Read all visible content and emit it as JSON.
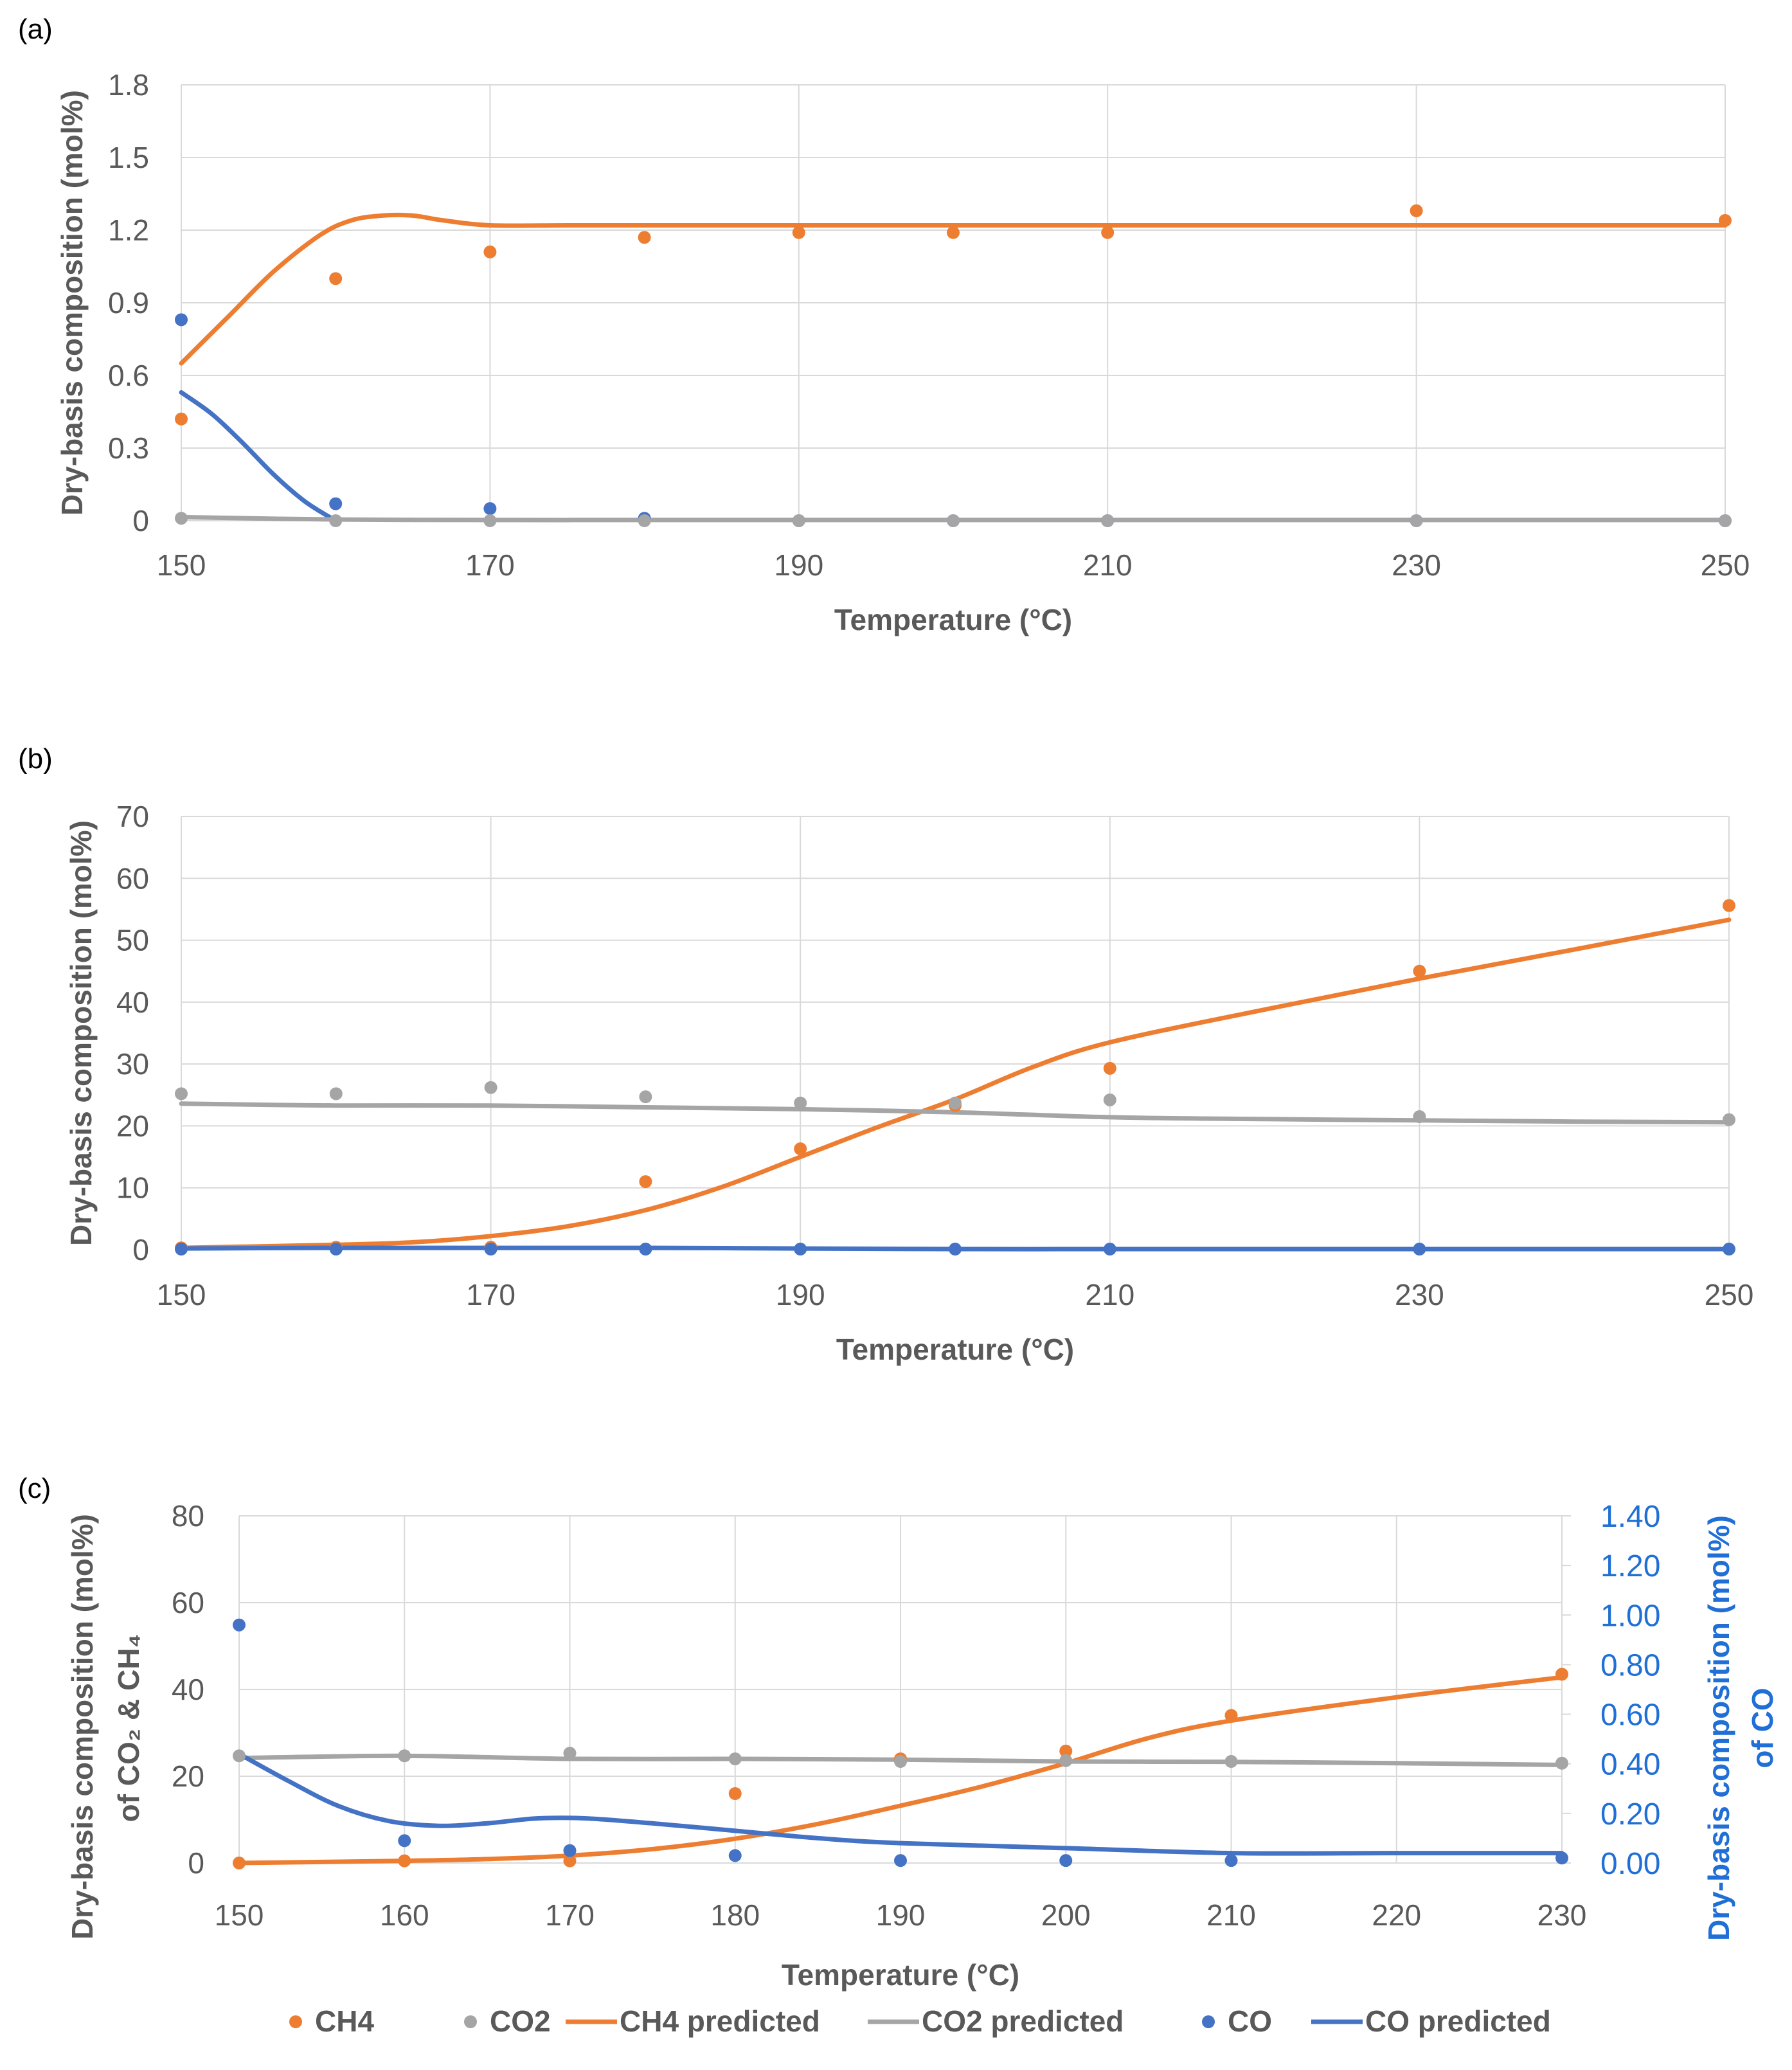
{
  "chart_data": [
    {
      "panel_label": "(a)",
      "type": "line",
      "xlabel": "Temperature (°C)",
      "ylabel": "Dry-basis composition (mol%)",
      "xlim": [
        150,
        250
      ],
      "ylim": [
        0,
        1.8
      ],
      "x_ticks": [
        150,
        170,
        190,
        210,
        230,
        250
      ],
      "y_ticks": [
        "0",
        "0.3",
        "0.6",
        "0.9",
        "1.2",
        "1.5",
        "1.8"
      ],
      "grid": true,
      "series": [
        {
          "name": "CH4",
          "kind": "points",
          "color": "#ED7D31",
          "x": [
            150,
            160,
            170,
            180,
            190,
            200,
            210,
            230,
            250
          ],
          "y": [
            0.42,
            1.0,
            1.11,
            1.17,
            1.19,
            1.19,
            1.19,
            1.28,
            1.24
          ]
        },
        {
          "name": "CO",
          "kind": "points",
          "color": "#4472C4",
          "x": [
            150,
            160,
            170,
            180,
            190,
            200,
            210,
            230,
            250
          ],
          "y": [
            0.83,
            0.07,
            0.05,
            0.01,
            0.0,
            0.0,
            0.0,
            0.0,
            0.0
          ]
        },
        {
          "name": "CO2",
          "kind": "points",
          "color": "#A5A5A5",
          "x": [
            150,
            160,
            170,
            180,
            190,
            200,
            210,
            230,
            250
          ],
          "y": [
            0.01,
            0.0,
            0.0,
            0.0,
            0.0,
            0.0,
            0.0,
            0.0,
            0.0
          ]
        },
        {
          "name": "CH4 predicted",
          "kind": "line",
          "color": "#ED7D31",
          "x": [
            150,
            153,
            156,
            159,
            161,
            163,
            165,
            167,
            170,
            175,
            180,
            190,
            200,
            210,
            220,
            230,
            240,
            250
          ],
          "y": [
            0.65,
            0.84,
            1.03,
            1.18,
            1.24,
            1.26,
            1.26,
            1.24,
            1.22,
            1.22,
            1.22,
            1.22,
            1.22,
            1.22,
            1.22,
            1.22,
            1.22,
            1.22
          ]
        },
        {
          "name": "CO predicted",
          "kind": "line",
          "color": "#4472C4",
          "x": [
            150,
            152,
            154,
            156,
            158,
            160
          ],
          "y": [
            0.53,
            0.44,
            0.32,
            0.19,
            0.08,
            0.0
          ]
        },
        {
          "name": "CO2 predicted",
          "kind": "line",
          "color": "#A5A5A5",
          "x": [
            150,
            160,
            170,
            180,
            190,
            200,
            210,
            220,
            230,
            240,
            250
          ],
          "y": [
            0.015,
            0.005,
            0.003,
            0.003,
            0.003,
            0.003,
            0.003,
            0.003,
            0.003,
            0.003,
            0.003
          ]
        }
      ]
    },
    {
      "panel_label": "(b)",
      "type": "line",
      "xlabel": "Temperature (°C)",
      "ylabel": "Dry-basis composition (mol%)",
      "xlim": [
        150,
        250
      ],
      "ylim": [
        0,
        70
      ],
      "x_ticks": [
        150,
        170,
        190,
        210,
        230,
        250
      ],
      "y_ticks": [
        "0",
        "10",
        "20",
        "30",
        "40",
        "50",
        "60",
        "70"
      ],
      "grid": true,
      "series": [
        {
          "name": "CH4",
          "kind": "points",
          "color": "#ED7D31",
          "x": [
            150,
            160,
            170,
            180,
            190,
            200,
            210,
            230,
            250
          ],
          "y": [
            0.3,
            0.4,
            0.4,
            11.0,
            16.3,
            23.3,
            29.3,
            45.0,
            55.6
          ]
        },
        {
          "name": "CO2",
          "kind": "points",
          "color": "#A5A5A5",
          "x": [
            150,
            160,
            170,
            180,
            190,
            200,
            210,
            230,
            250
          ],
          "y": [
            25.2,
            25.2,
            26.2,
            24.7,
            23.7,
            23.7,
            24.2,
            21.5,
            21.0
          ]
        },
        {
          "name": "CO",
          "kind": "points",
          "color": "#4472C4",
          "x": [
            150,
            160,
            170,
            180,
            190,
            200,
            210,
            230,
            250
          ],
          "y": [
            0.1,
            0.1,
            0.1,
            0.1,
            0.1,
            0.1,
            0.1,
            0.1,
            0.1
          ]
        },
        {
          "name": "CH4 predicted",
          "kind": "line",
          "color": "#ED7D31",
          "x": [
            150,
            160,
            165,
            170,
            175,
            180,
            185,
            190,
            195,
            200,
            205,
            210,
            220,
            230,
            240,
            250
          ],
          "y": [
            0.3,
            0.8,
            1.2,
            2.2,
            3.8,
            6.4,
            10.2,
            15.0,
            19.8,
            24.3,
            29.5,
            33.5,
            38.8,
            43.8,
            48.5,
            53.3
          ]
        },
        {
          "name": "CO2 predicted",
          "kind": "line",
          "color": "#A5A5A5",
          "x": [
            150,
            160,
            170,
            180,
            190,
            200,
            210,
            220,
            230,
            240,
            250
          ],
          "y": [
            23.6,
            23.3,
            23.3,
            23.0,
            22.7,
            22.2,
            21.4,
            21.1,
            20.9,
            20.7,
            20.6
          ]
        },
        {
          "name": "CO predicted",
          "kind": "line",
          "color": "#4472C4",
          "x": [
            150,
            160,
            170,
            180,
            190,
            200,
            210,
            220,
            230,
            240,
            250
          ],
          "y": [
            0.2,
            0.3,
            0.3,
            0.3,
            0.2,
            0.1,
            0.1,
            0.1,
            0.1,
            0.1,
            0.1
          ]
        }
      ]
    },
    {
      "panel_label": "(c)",
      "type": "line",
      "xlabel": "Temperature (°C)",
      "ylabel": "Dry-basis composition (mol%)",
      "ylabel_line2": "of CO₂ & CH₄",
      "ylabel_right": "Dry-basis composition (mol%)",
      "ylabel_right_line2": "of CO",
      "xlim": [
        150,
        230
      ],
      "ylim": [
        0,
        80
      ],
      "ylim_right": [
        0,
        1.4
      ],
      "x_ticks": [
        150,
        160,
        170,
        180,
        190,
        200,
        210,
        220,
        230
      ],
      "y_ticks": [
        "0",
        "20",
        "40",
        "60",
        "80"
      ],
      "y_ticks_right": [
        "0.00",
        "0.20",
        "0.40",
        "0.60",
        "0.80",
        "1.00",
        "1.20",
        "1.40"
      ],
      "grid": true,
      "series": [
        {
          "name": "CH4",
          "kind": "points",
          "color": "#ED7D31",
          "axis": "left",
          "x": [
            150,
            160,
            170,
            180,
            190,
            200,
            210,
            230
          ],
          "y": [
            0.0,
            0.5,
            0.5,
            16.0,
            24.0,
            25.8,
            34.0,
            43.5
          ]
        },
        {
          "name": "CO2",
          "kind": "points",
          "color": "#A5A5A5",
          "axis": "left",
          "x": [
            150,
            160,
            170,
            180,
            190,
            200,
            210,
            230
          ],
          "y": [
            24.7,
            24.7,
            25.3,
            24.0,
            23.4,
            23.6,
            23.4,
            23.0
          ]
        },
        {
          "name": "CH4  predicted",
          "kind": "line",
          "color": "#ED7D31",
          "axis": "left",
          "x": [
            150,
            160,
            165,
            170,
            175,
            180,
            185,
            190,
            195,
            200,
            205,
            210,
            220,
            230
          ],
          "y": [
            0.0,
            0.5,
            0.9,
            1.7,
            3.2,
            5.6,
            9.0,
            13.2,
            17.7,
            23.0,
            28.8,
            32.8,
            38.2,
            42.8
          ]
        },
        {
          "name": "CO2  predicted",
          "kind": "line",
          "color": "#A5A5A5",
          "axis": "left",
          "x": [
            150,
            160,
            170,
            180,
            190,
            200,
            210,
            220,
            230
          ],
          "y": [
            24.2,
            24.7,
            24.0,
            24.0,
            23.8,
            23.4,
            23.3,
            23.0,
            22.6
          ]
        },
        {
          "name": "CO",
          "kind": "points",
          "color": "#4472C4",
          "axis": "right",
          "x": [
            150,
            160,
            170,
            180,
            190,
            200,
            210,
            230
          ],
          "y": [
            0.96,
            0.09,
            0.05,
            0.03,
            0.01,
            0.01,
            0.01,
            0.02
          ]
        },
        {
          "name": "CO predicted",
          "kind": "line",
          "color": "#4472C4",
          "axis": "right",
          "x": [
            150,
            153,
            156,
            159,
            162,
            165,
            168,
            171,
            175,
            180,
            185,
            190,
            200,
            210,
            220,
            230
          ],
          "y": [
            0.44,
            0.33,
            0.23,
            0.17,
            0.15,
            0.16,
            0.18,
            0.18,
            0.16,
            0.13,
            0.1,
            0.08,
            0.06,
            0.04,
            0.04,
            0.04
          ]
        }
      ]
    }
  ],
  "legend": [
    {
      "label": "CH4",
      "kind": "points",
      "color": "#ED7D31"
    },
    {
      "label": "CO2",
      "kind": "points",
      "color": "#A5A5A5"
    },
    {
      "label": "CH4  predicted",
      "kind": "line",
      "color": "#ED7D31"
    },
    {
      "label": "CO2  predicted",
      "kind": "line",
      "color": "#A5A5A5"
    },
    {
      "label": "CO",
      "kind": "points",
      "color": "#4472C4"
    },
    {
      "label": "CO predicted",
      "kind": "line",
      "color": "#4472C4"
    }
  ],
  "colors": {
    "grid": "#d9d9d9",
    "tick_text": "#595959",
    "right_axis": "#1f6fd6"
  }
}
